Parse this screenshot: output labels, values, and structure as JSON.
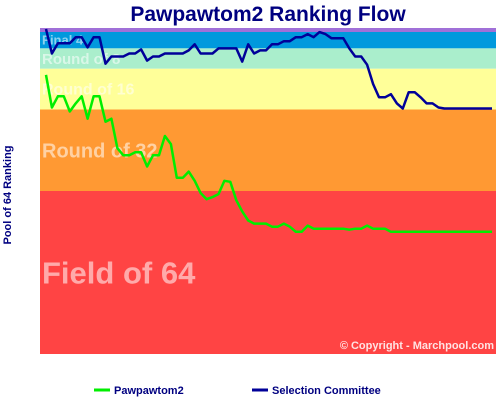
{
  "chart_data": {
    "type": "line",
    "title": "Pawpawtom2 Ranking Flow",
    "ylabel": "Pool of 64 Ranking",
    "copyright": "© Copyright - Marchpool.com",
    "bands": [
      {
        "label": "Final 4",
        "from": 0,
        "to": 2,
        "color": "#0099dd"
      },
      {
        "label": "Round of 8",
        "from": 2,
        "to": 4,
        "color": "#aaeecc"
      },
      {
        "label": "Round of 16",
        "from": 4,
        "to": 8,
        "color": "#ffff99"
      },
      {
        "label": "Round of 32",
        "from": 8,
        "to": 16,
        "color": "#ff9933"
      },
      {
        "label": "Field of 64",
        "from": 16,
        "to": 32,
        "color": "#ff4444"
      }
    ],
    "top_strip_color": "#a070d8",
    "ylim": [
      32,
      0
    ],
    "x": [
      1,
      2,
      3,
      4,
      5,
      6,
      7,
      8,
      9,
      10,
      11,
      12,
      13,
      14,
      15,
      16,
      17,
      18,
      19,
      20,
      21,
      22,
      23,
      24,
      25,
      26,
      27,
      28,
      29,
      30,
      31,
      32,
      33,
      34,
      35,
      36,
      37,
      38,
      39,
      40,
      41,
      42,
      43,
      44,
      45,
      46,
      47,
      48,
      49,
      50,
      51,
      52,
      53,
      54,
      55,
      56,
      57,
      58,
      59,
      60,
      61,
      62,
      63,
      64,
      65,
      66,
      67,
      68,
      69,
      70,
      71,
      72,
      73,
      74,
      75,
      76
    ],
    "series": [
      {
        "name": "Pawpawtom2",
        "color": "#00ee00",
        "values": [
          4.6,
          7.8,
          6.7,
          6.7,
          8.2,
          7.4,
          6.7,
          8.9,
          6.7,
          6.7,
          9.2,
          8.9,
          11.8,
          12.5,
          12.5,
          12.2,
          12.2,
          13.6,
          12.5,
          12.5,
          10.6,
          11.4,
          14.7,
          14.7,
          14.1,
          15.0,
          16.2,
          16.8,
          16.6,
          16.3,
          15.0,
          15.1,
          16.9,
          18.0,
          18.9,
          19.2,
          19.2,
          19.2,
          19.5,
          19.5,
          19.2,
          19.5,
          20.0,
          20.0,
          19.4,
          19.7,
          19.7,
          19.7,
          19.7,
          19.7,
          19.7,
          19.8,
          19.7,
          19.7,
          19.4,
          19.7,
          19.7,
          19.7,
          20.0,
          20.0,
          20.0,
          20.0,
          20.0,
          20.0,
          20.0,
          20.0,
          20.0,
          20.0,
          20.0,
          20.0,
          20.0,
          20.0,
          20.0,
          20.0,
          20.0,
          20.0
        ]
      },
      {
        "name": "Selection Committee",
        "color": "#000099",
        "values": [
          0.1,
          2.5,
          1.5,
          1.5,
          1.5,
          0.9,
          0.9,
          1.9,
          0.9,
          0.9,
          3.5,
          2.8,
          2.8,
          2.8,
          2.5,
          2.5,
          2.1,
          3.2,
          2.8,
          2.8,
          2.5,
          2.5,
          2.5,
          2.5,
          2.2,
          1.6,
          2.5,
          2.5,
          2.5,
          2.0,
          2.0,
          2.0,
          2.0,
          3.3,
          1.6,
          2.5,
          2.2,
          2.2,
          1.6,
          1.6,
          1.3,
          1.3,
          0.9,
          0.9,
          0.6,
          0.9,
          0.4,
          0.6,
          1.0,
          1.0,
          1.0,
          2.0,
          2.8,
          2.8,
          3.6,
          5.5,
          6.8,
          6.8,
          6.5,
          7.4,
          7.9,
          6.3,
          6.3,
          6.8,
          7.4,
          7.4,
          7.8,
          7.9,
          7.9,
          7.9,
          7.9,
          7.9,
          7.9,
          7.9,
          7.9,
          7.9
        ]
      }
    ],
    "legend": {
      "position": "bottom"
    },
    "grid": false
  }
}
